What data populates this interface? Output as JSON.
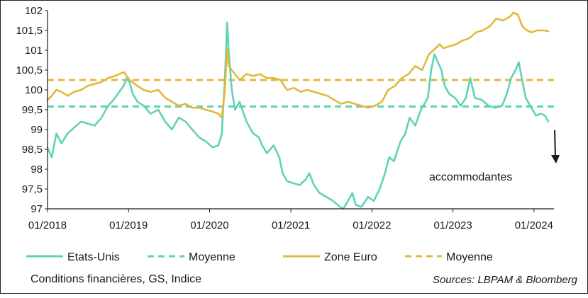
{
  "chart_data": {
    "type": "line",
    "title": "",
    "footer_left": "Conditions financières, GS, Indice",
    "source": "Sources: LBPAM & Bloomberg",
    "annotation": "accommodantes",
    "ylim": [
      97,
      102
    ],
    "xlim": [
      "2018-01-01",
      "2024-03-31"
    ],
    "yticks": [
      "97",
      "97,5",
      "98",
      "98,5",
      "99",
      "99,5",
      "100",
      "100,5",
      "101",
      "101,5",
      "102"
    ],
    "xticks": [
      "01/2018",
      "01/2019",
      "01/2020",
      "01/2021",
      "01/2022",
      "01/2023",
      "01/2024"
    ],
    "grid": false,
    "legend_position": "bottom",
    "colors": {
      "us": "#5fd3b8",
      "euro": "#e2b93b",
      "axis": "#1a1a1a"
    },
    "series": [
      {
        "name": "Etats-Unis",
        "style": "solid",
        "color": "#5fd3b8",
        "points": [
          [
            "2018-01-01",
            98.55
          ],
          [
            "2018-01-20",
            98.3
          ],
          [
            "2018-02-10",
            98.9
          ],
          [
            "2018-03-05",
            98.65
          ],
          [
            "2018-04-01",
            98.9
          ],
          [
            "2018-05-01",
            99.05
          ],
          [
            "2018-06-01",
            99.2
          ],
          [
            "2018-07-01",
            99.15
          ],
          [
            "2018-08-01",
            99.1
          ],
          [
            "2018-09-01",
            99.3
          ],
          [
            "2018-10-01",
            99.6
          ],
          [
            "2018-11-01",
            99.8
          ],
          [
            "2018-11-20",
            99.95
          ],
          [
            "2018-12-10",
            100.1
          ],
          [
            "2018-12-24",
            100.3
          ],
          [
            "2019-01-05",
            100.2
          ],
          [
            "2019-01-20",
            99.9
          ],
          [
            "2019-02-10",
            99.7
          ],
          [
            "2019-03-10",
            99.6
          ],
          [
            "2019-04-10",
            99.4
          ],
          [
            "2019-05-15",
            99.5
          ],
          [
            "2019-06-15",
            99.2
          ],
          [
            "2019-07-15",
            99.0
          ],
          [
            "2019-08-15",
            99.3
          ],
          [
            "2019-09-15",
            99.2
          ],
          [
            "2019-10-15",
            99.0
          ],
          [
            "2019-11-15",
            98.8
          ],
          [
            "2019-12-15",
            98.7
          ],
          [
            "2020-01-15",
            98.55
          ],
          [
            "2020-02-10",
            98.6
          ],
          [
            "2020-02-25",
            98.9
          ],
          [
            "2020-03-10",
            100.3
          ],
          [
            "2020-03-20",
            101.7
          ],
          [
            "2020-03-28",
            100.9
          ],
          [
            "2020-04-10",
            100.0
          ],
          [
            "2020-04-25",
            99.5
          ],
          [
            "2020-05-15",
            99.7
          ],
          [
            "2020-06-15",
            99.2
          ],
          [
            "2020-07-15",
            98.9
          ],
          [
            "2020-08-10",
            98.8
          ],
          [
            "2020-08-25",
            98.6
          ],
          [
            "2020-09-15",
            98.4
          ],
          [
            "2020-10-15",
            98.6
          ],
          [
            "2020-11-10",
            98.3
          ],
          [
            "2020-11-25",
            97.9
          ],
          [
            "2020-12-15",
            97.7
          ],
          [
            "2021-01-10",
            97.65
          ],
          [
            "2021-02-10",
            97.6
          ],
          [
            "2021-03-10",
            97.75
          ],
          [
            "2021-03-25",
            97.9
          ],
          [
            "2021-04-15",
            97.6
          ],
          [
            "2021-05-10",
            97.4
          ],
          [
            "2021-06-10",
            97.3
          ],
          [
            "2021-07-10",
            97.2
          ],
          [
            "2021-08-10",
            97.05
          ],
          [
            "2021-08-25",
            97.0
          ],
          [
            "2021-09-10",
            97.15
          ],
          [
            "2021-10-05",
            97.4
          ],
          [
            "2021-10-20",
            97.1
          ],
          [
            "2021-11-15",
            97.05
          ],
          [
            "2021-12-15",
            97.3
          ],
          [
            "2022-01-10",
            97.2
          ],
          [
            "2022-02-05",
            97.5
          ],
          [
            "2022-03-01",
            97.9
          ],
          [
            "2022-03-20",
            98.3
          ],
          [
            "2022-04-10",
            98.2
          ],
          [
            "2022-05-10",
            98.7
          ],
          [
            "2022-06-01",
            98.9
          ],
          [
            "2022-06-20",
            99.3
          ],
          [
            "2022-07-15",
            99.1
          ],
          [
            "2022-08-10",
            99.5
          ],
          [
            "2022-09-10",
            99.8
          ],
          [
            "2022-09-25",
            100.5
          ],
          [
            "2022-10-10",
            100.9
          ],
          [
            "2022-10-25",
            100.7
          ],
          [
            "2022-11-10",
            100.5
          ],
          [
            "2022-11-25",
            100.1
          ],
          [
            "2022-12-15",
            99.9
          ],
          [
            "2023-01-10",
            99.8
          ],
          [
            "2023-02-05",
            99.6
          ],
          [
            "2023-03-01",
            99.8
          ],
          [
            "2023-03-20",
            100.3
          ],
          [
            "2023-04-10",
            99.8
          ],
          [
            "2023-05-10",
            99.75
          ],
          [
            "2023-06-10",
            99.6
          ],
          [
            "2023-07-10",
            99.55
          ],
          [
            "2023-08-10",
            99.6
          ],
          [
            "2023-09-01",
            99.9
          ],
          [
            "2023-09-20",
            100.3
          ],
          [
            "2023-10-10",
            100.5
          ],
          [
            "2023-10-25",
            100.7
          ],
          [
            "2023-11-10",
            100.2
          ],
          [
            "2023-11-25",
            99.8
          ],
          [
            "2023-12-15",
            99.6
          ],
          [
            "2024-01-10",
            99.35
          ],
          [
            "2024-02-01",
            99.4
          ],
          [
            "2024-02-20",
            99.35
          ],
          [
            "2024-03-05",
            99.2
          ]
        ]
      },
      {
        "name": "Moyenne",
        "style": "dashed",
        "color": "#5fd3b8",
        "points": [
          [
            "2018-01-01",
            99.58
          ],
          [
            "2024-03-31",
            99.58
          ]
        ]
      },
      {
        "name": "Zone Euro",
        "style": "solid",
        "color": "#e2b93b",
        "points": [
          [
            "2018-01-01",
            99.75
          ],
          [
            "2018-01-20",
            99.85
          ],
          [
            "2018-02-10",
            100.0
          ],
          [
            "2018-03-05",
            99.95
          ],
          [
            "2018-04-01",
            99.85
          ],
          [
            "2018-05-01",
            99.95
          ],
          [
            "2018-06-01",
            100.0
          ],
          [
            "2018-07-01",
            100.1
          ],
          [
            "2018-08-01",
            100.15
          ],
          [
            "2018-09-01",
            100.2
          ],
          [
            "2018-10-01",
            100.3
          ],
          [
            "2018-11-01",
            100.35
          ],
          [
            "2018-11-20",
            100.4
          ],
          [
            "2018-12-10",
            100.45
          ],
          [
            "2018-12-24",
            100.35
          ],
          [
            "2019-01-05",
            100.25
          ],
          [
            "2019-02-10",
            100.1
          ],
          [
            "2019-03-10",
            100.0
          ],
          [
            "2019-04-10",
            99.95
          ],
          [
            "2019-05-15",
            100.0
          ],
          [
            "2019-06-15",
            99.8
          ],
          [
            "2019-07-15",
            99.7
          ],
          [
            "2019-08-15",
            99.6
          ],
          [
            "2019-09-15",
            99.65
          ],
          [
            "2019-10-15",
            99.55
          ],
          [
            "2019-11-15",
            99.55
          ],
          [
            "2019-12-15",
            99.5
          ],
          [
            "2020-01-15",
            99.45
          ],
          [
            "2020-02-10",
            99.4
          ],
          [
            "2020-02-25",
            99.3
          ],
          [
            "2020-03-10",
            100.0
          ],
          [
            "2020-03-20",
            101.05
          ],
          [
            "2020-03-28",
            100.6
          ],
          [
            "2020-04-10",
            100.5
          ],
          [
            "2020-05-15",
            100.25
          ],
          [
            "2020-06-15",
            100.4
          ],
          [
            "2020-07-15",
            100.35
          ],
          [
            "2020-08-15",
            100.4
          ],
          [
            "2020-09-15",
            100.3
          ],
          [
            "2020-10-15",
            100.3
          ],
          [
            "2020-11-15",
            100.25
          ],
          [
            "2020-12-15",
            100.0
          ],
          [
            "2021-01-15",
            100.05
          ],
          [
            "2021-02-15",
            99.95
          ],
          [
            "2021-03-15",
            100.0
          ],
          [
            "2021-04-15",
            99.95
          ],
          [
            "2021-05-15",
            99.9
          ],
          [
            "2021-06-15",
            99.85
          ],
          [
            "2021-07-15",
            99.75
          ],
          [
            "2021-08-15",
            99.65
          ],
          [
            "2021-09-15",
            99.7
          ],
          [
            "2021-10-15",
            99.65
          ],
          [
            "2021-11-15",
            99.6
          ],
          [
            "2021-12-15",
            99.55
          ],
          [
            "2022-01-15",
            99.6
          ],
          [
            "2022-02-15",
            99.7
          ],
          [
            "2022-03-15",
            100.0
          ],
          [
            "2022-04-15",
            100.1
          ],
          [
            "2022-05-15",
            100.3
          ],
          [
            "2022-06-15",
            100.4
          ],
          [
            "2022-07-15",
            100.6
          ],
          [
            "2022-08-15",
            100.5
          ],
          [
            "2022-09-15",
            100.9
          ],
          [
            "2022-10-15",
            101.05
          ],
          [
            "2022-11-01",
            101.15
          ],
          [
            "2022-11-20",
            101.05
          ],
          [
            "2022-12-15",
            101.1
          ],
          [
            "2023-01-15",
            101.15
          ],
          [
            "2023-02-15",
            101.25
          ],
          [
            "2023-03-15",
            101.3
          ],
          [
            "2023-04-15",
            101.45
          ],
          [
            "2023-05-15",
            101.5
          ],
          [
            "2023-06-15",
            101.6
          ],
          [
            "2023-07-15",
            101.8
          ],
          [
            "2023-08-15",
            101.75
          ],
          [
            "2023-09-15",
            101.85
          ],
          [
            "2023-10-01",
            101.95
          ],
          [
            "2023-10-20",
            101.9
          ],
          [
            "2023-11-10",
            101.6
          ],
          [
            "2023-12-01",
            101.5
          ],
          [
            "2023-12-20",
            101.45
          ],
          [
            "2024-01-15",
            101.5
          ],
          [
            "2024-02-15",
            101.5
          ],
          [
            "2024-03-05",
            101.48
          ]
        ]
      },
      {
        "name": "Moyenne",
        "style": "dashed",
        "color": "#e2b93b",
        "points": [
          [
            "2018-01-01",
            100.25
          ],
          [
            "2024-03-31",
            100.25
          ]
        ]
      }
    ]
  }
}
